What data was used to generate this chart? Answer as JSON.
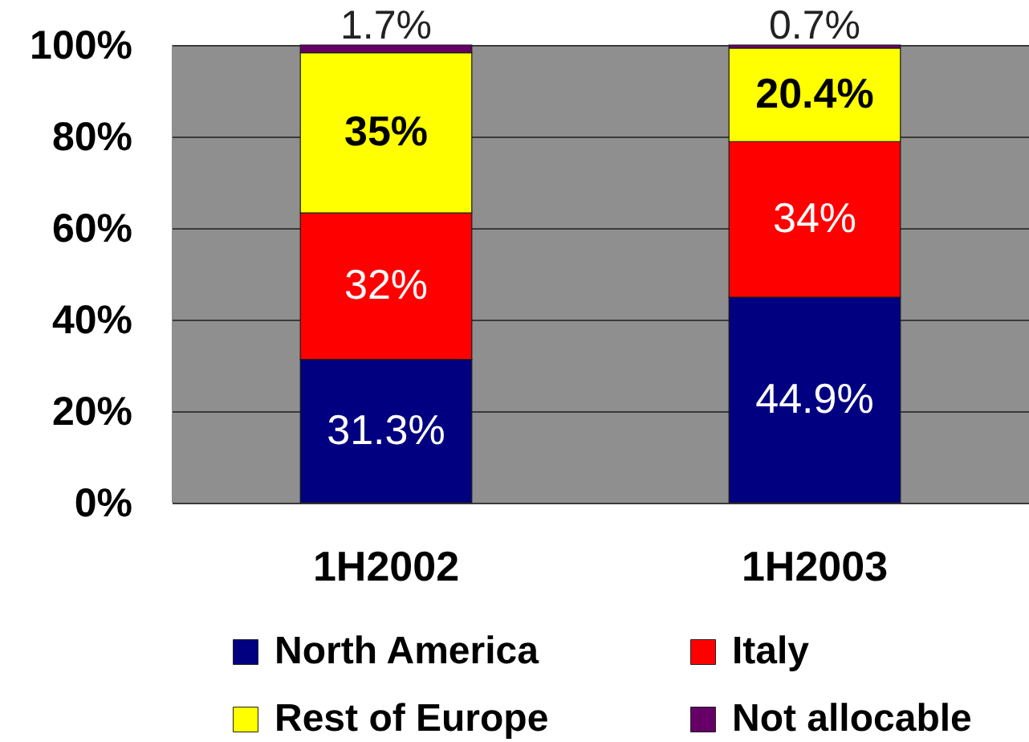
{
  "chart_data": {
    "type": "bar",
    "stacked": true,
    "categories": [
      "1H2002",
      "1H2003"
    ],
    "series": [
      {
        "name": "North America",
        "color": "#000080",
        "values": [
          31.3,
          44.9
        ],
        "value_labels": [
          "31.3%",
          "44.9%"
        ]
      },
      {
        "name": "Italy",
        "color": "#ff0000",
        "values": [
          32,
          34
        ],
        "value_labels": [
          "32%",
          "34%"
        ]
      },
      {
        "name": "Rest of Europe",
        "color": "#ffff00",
        "values": [
          35,
          20.4
        ],
        "value_labels": [
          "35%",
          "20.4%"
        ]
      },
      {
        "name": "Not allocable",
        "color": "#660066",
        "values": [
          1.7,
          0.7
        ],
        "value_labels": [
          "1.7%",
          "0.7%"
        ]
      }
    ],
    "ylim": [
      0,
      100
    ],
    "yticks": [
      {
        "value": 0,
        "label": "0%"
      },
      {
        "value": 20,
        "label": "20%"
      },
      {
        "value": 40,
        "label": "40%"
      },
      {
        "value": 60,
        "label": "60%"
      },
      {
        "value": 80,
        "label": "80%"
      },
      {
        "value": 100,
        "label": "100%"
      }
    ],
    "grid": "y",
    "legend": "bottom"
  }
}
